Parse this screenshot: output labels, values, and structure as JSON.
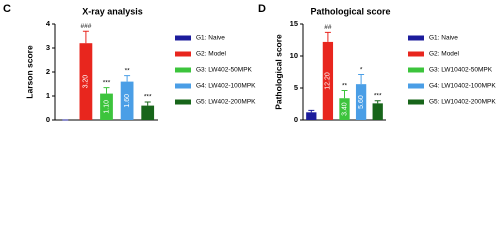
{
  "chart_data": [
    {
      "type": "bar",
      "panel": "C",
      "title": "X-ray analysis",
      "y_label": "Larson score",
      "categories": [
        "G1: Naive",
        "G2: Model",
        "G3: LW402-50MPK",
        "G4: LW402-100MPK",
        "G5: LW402-200MPK"
      ],
      "colors": [
        "#1c1c9c",
        "#e8261e",
        "#3cc43c",
        "#4a9ee6",
        "#17651a"
      ],
      "values": [
        0,
        3.2,
        1.1,
        1.6,
        0.6
      ],
      "value_labels": [
        null,
        "3.20",
        "1.10",
        "1.60",
        null
      ],
      "errors": [
        0,
        0.5,
        0.25,
        0.25,
        0.15
      ],
      "annotations": [
        null,
        "###",
        "***",
        "**",
        "***"
      ],
      "ylim": [
        0,
        4
      ],
      "yticks": [
        0,
        1,
        2,
        3,
        4
      ]
    },
    {
      "type": "bar",
      "panel": "D",
      "title": "Pathological score",
      "y_label": "Pathological score",
      "categories": [
        "G1: Naive",
        "G2: Model",
        "G3: LW10402-50MPK",
        "G4: LW10402-100MPK",
        "G5: LW10402-200MPK"
      ],
      "colors": [
        "#1c1c9c",
        "#e8261e",
        "#3cc43c",
        "#4a9ee6",
        "#17651a"
      ],
      "values": [
        1.2,
        12.2,
        3.4,
        5.6,
        2.6
      ],
      "value_labels": [
        null,
        "12.20",
        "3.40",
        "5.60",
        null
      ],
      "errors": [
        0.3,
        1.5,
        1.2,
        1.5,
        0.4
      ],
      "annotations": [
        null,
        "##",
        "**",
        "*",
        "***"
      ],
      "ylim": [
        0,
        15
      ],
      "yticks": [
        0,
        5,
        10,
        15
      ]
    }
  ]
}
